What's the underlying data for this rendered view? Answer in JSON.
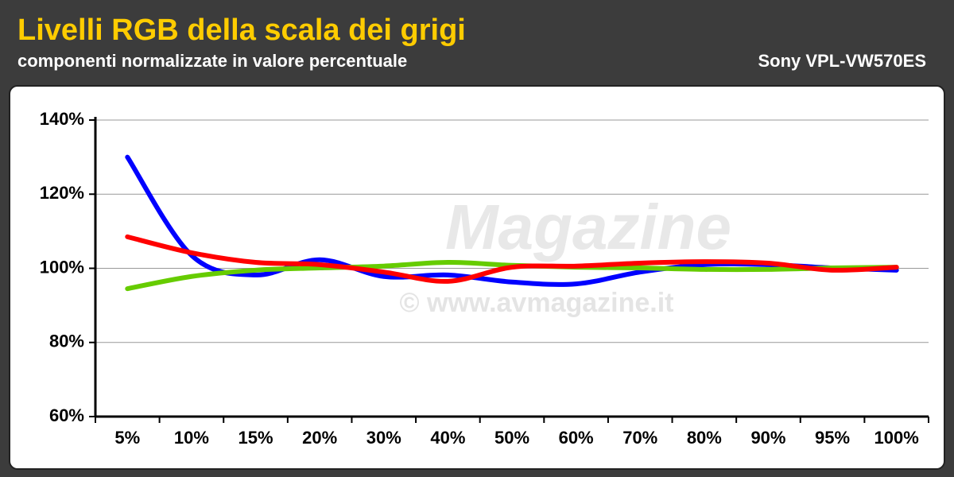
{
  "chart_data": {
    "type": "line",
    "title": "Livelli RGB della scala dei grigi",
    "subtitle": "componenti normalizzate in valore percentuale",
    "annotation": "Sony VPL-VW570ES",
    "watermark": [
      "Magazine",
      "© www.avmagazine.it"
    ],
    "categories": [
      "5%",
      "10%",
      "15%",
      "20%",
      "30%",
      "40%",
      "50%",
      "60%",
      "70%",
      "80%",
      "90%",
      "95%",
      "100%"
    ],
    "series": [
      {
        "name": "Blu",
        "color": "#0000ff",
        "values": [
          130,
          103.5,
          98.2,
          102.3,
          97.8,
          98.2,
          96.3,
          95.8,
          99,
          101,
          101,
          100.1,
          99.5
        ]
      },
      {
        "name": "Verde",
        "color": "#66cc00",
        "values": [
          94.5,
          97.8,
          99.5,
          100.1,
          100.6,
          101.6,
          100.8,
          100.3,
          100.1,
          99.7,
          99.7,
          100.1,
          100.3
        ]
      },
      {
        "name": "Rosso",
        "color": "#ff0000",
        "values": [
          108.5,
          104.2,
          101.6,
          101,
          99,
          96.5,
          100.3,
          100.6,
          101.4,
          101.8,
          101.4,
          99.5,
          100.3
        ]
      }
    ],
    "ylim": [
      60,
      140
    ],
    "yticks": [
      {
        "value": 60,
        "label": "60%"
      },
      {
        "value": 80,
        "label": "80%"
      },
      {
        "value": 100,
        "label": "100%"
      },
      {
        "value": 120,
        "label": "120%"
      },
      {
        "value": 140,
        "label": "140%"
      }
    ],
    "grid": true
  }
}
